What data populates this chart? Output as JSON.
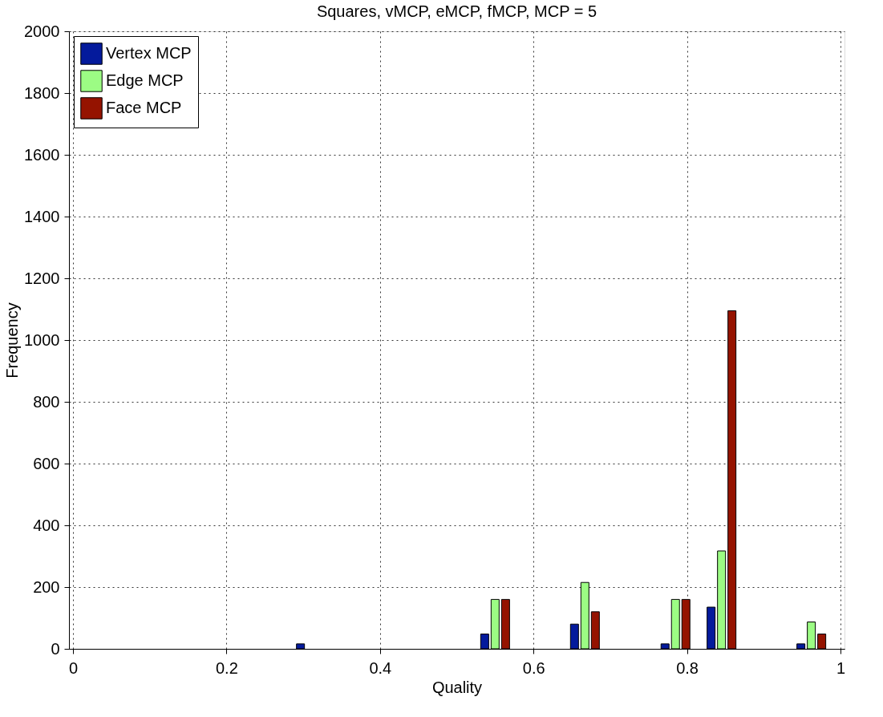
{
  "chart_data": {
    "type": "bar",
    "title": "Squares, vMCP, eMCP, fMCP, MCP = 5",
    "xlabel": "Quality",
    "ylabel": "Frequency",
    "x": [
      0.31,
      0.55,
      0.667,
      0.785,
      0.845,
      0.962
    ],
    "series": [
      {
        "name": "Vertex MCP",
        "color": "#041a9c",
        "values": [
          16,
          48,
          80,
          16,
          135,
          16
        ]
      },
      {
        "name": "Edge MCP",
        "color": "#9cfc84",
        "values": [
          null,
          160,
          215,
          160,
          317,
          87
        ]
      },
      {
        "name": "Face MCP",
        "color": "#951300",
        "values": [
          null,
          160,
          120,
          160,
          1095,
          48
        ]
      }
    ],
    "xlim": [
      0,
      1
    ],
    "xticks": [
      0,
      0.2,
      0.4,
      0.6,
      0.8,
      1
    ],
    "ylim": [
      0,
      2000
    ],
    "yticks": [
      0,
      200,
      400,
      600,
      800,
      1000,
      1200,
      1400,
      1600,
      1800,
      2000
    ],
    "grid": true,
    "legend": "top left"
  }
}
